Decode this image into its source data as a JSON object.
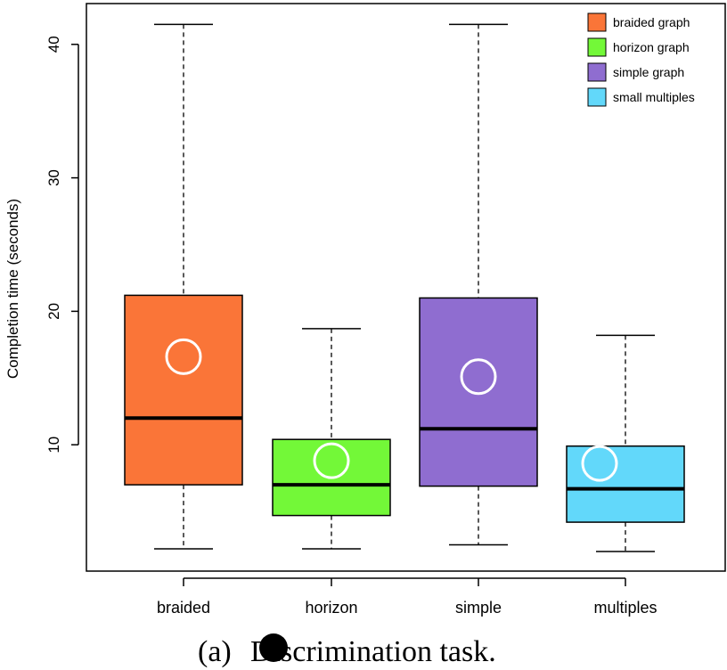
{
  "chart_data": {
    "type": "box",
    "ylabel": "Completion time (seconds)",
    "xlabel": "",
    "ylim": [
      0,
      43
    ],
    "yticks": [
      10,
      20,
      30,
      40
    ],
    "categories": [
      "braided",
      "horizon",
      "simple",
      "multiples"
    ],
    "series": [
      {
        "name": "braided graph",
        "color": "#FA7538",
        "whisker_low": 2.2,
        "q1": 7.0,
        "median": 12.0,
        "q3": 21.2,
        "whisker_high": 41.5,
        "mean": 16.6
      },
      {
        "name": "horizon graph",
        "color": "#73F838",
        "whisker_low": 2.2,
        "q1": 4.7,
        "median": 7.0,
        "q3": 10.4,
        "whisker_high": 18.7,
        "mean": 8.8
      },
      {
        "name": "simple graph",
        "color": "#8F6DD0",
        "whisker_low": 2.5,
        "q1": 6.9,
        "median": 11.2,
        "q3": 21.0,
        "whisker_high": 41.5,
        "mean": 15.1
      },
      {
        "name": "small multiples",
        "color": "#62D8FA",
        "whisker_low": 2.0,
        "q1": 4.2,
        "median": 6.7,
        "q3": 9.9,
        "whisker_high": 18.2,
        "mean": 8.6
      }
    ],
    "legend_position": "top-right",
    "mean_marker": "white open circle"
  },
  "caption": {
    "prefix": "(a)",
    "text": "Discrimination task."
  }
}
